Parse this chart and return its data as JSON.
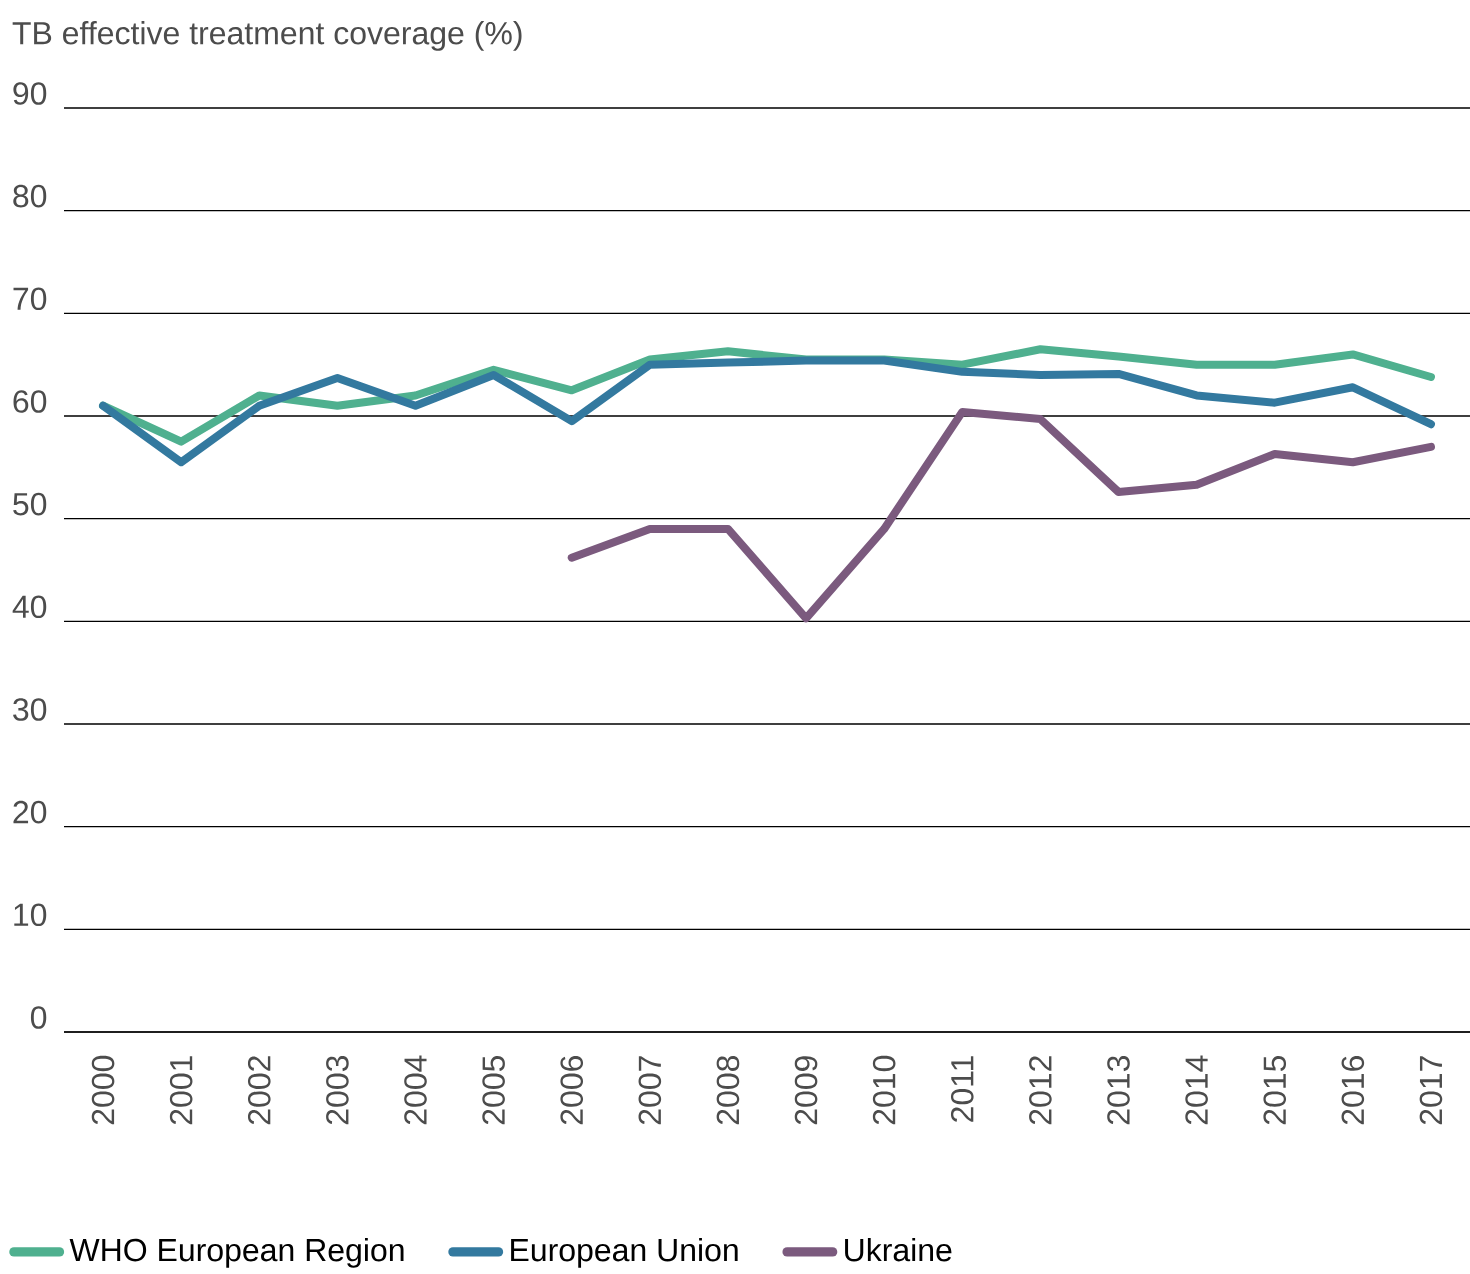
{
  "chart_data": {
    "type": "line",
    "ylabel": "TB effective treatment coverage (%)",
    "categories": [
      "2000",
      "2001",
      "2002",
      "2003",
      "2004",
      "2005",
      "2006",
      "2007",
      "2008",
      "2009",
      "2010",
      "2011",
      "2012",
      "2013",
      "2014",
      "2015",
      "2016",
      "2017"
    ],
    "series": [
      {
        "name": "WHO European Region",
        "color": "#4fb08f",
        "values": [
          61,
          57.5,
          62,
          61,
          62,
          64.5,
          62.5,
          65.5,
          66.3,
          65.5,
          65.5,
          65,
          66.5,
          65.8,
          65,
          65,
          66,
          63.8
        ]
      },
      {
        "name": "European Union",
        "color": "#33799f",
        "values": [
          61,
          55.5,
          61,
          63.7,
          61,
          64,
          59.5,
          65,
          65.2,
          65.4,
          65.4,
          64.3,
          64,
          64.1,
          62,
          61.3,
          62.8,
          59.2
        ]
      },
      {
        "name": "Ukraine",
        "color": "#7b5a7e",
        "values": [
          null,
          null,
          null,
          null,
          null,
          null,
          46.2,
          49,
          49,
          40.3,
          49,
          60.4,
          59.7,
          52.6,
          53.3,
          56.3,
          55.5,
          57
        ]
      }
    ],
    "ylim": [
      0,
      90
    ],
    "yticks": [
      0,
      10,
      20,
      30,
      40,
      50,
      60,
      70,
      80,
      90
    ],
    "grid": "y",
    "legend": "bottom"
  }
}
